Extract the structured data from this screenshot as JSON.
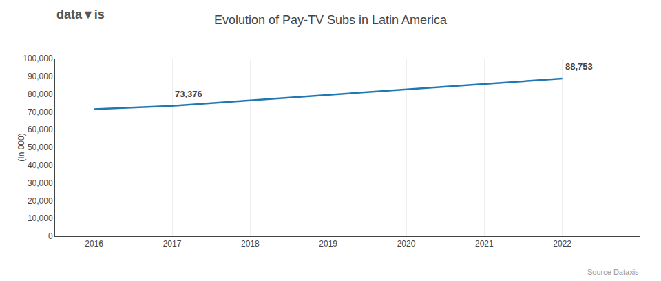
{
  "chart_data": {
    "type": "line",
    "title": "Evolution of Pay-TV Subs in Latin America",
    "ylabel": "(In 000)",
    "x": [
      2016,
      2017,
      2018,
      2019,
      2020,
      2021,
      2022
    ],
    "values": [
      71500,
      73376,
      76500,
      79500,
      82500,
      85700,
      88753
    ],
    "xlim": [
      2015.5,
      2023.0
    ],
    "xticks": [
      2016,
      2017,
      2018,
      2019,
      2020,
      2021,
      2022
    ],
    "ylim": [
      0,
      100000
    ],
    "yticks": [
      0,
      {
        "value": 10000,
        "label": "10,000"
      },
      {
        "value": 20000,
        "label": "20,000"
      },
      {
        "value": 30000,
        "label": "30,000"
      },
      {
        "value": 40000,
        "label": "40,000"
      },
      {
        "value": 50000,
        "label": "50,000"
      },
      {
        "value": 60000,
        "label": "60,000"
      },
      {
        "value": 70000,
        "label": "70,000"
      },
      {
        "value": 80000,
        "label": "80,000"
      },
      {
        "value": 90000,
        "label": "90,000"
      },
      {
        "value": 100000,
        "label": "100,000"
      }
    ],
    "grid": "x",
    "annotations": [
      {
        "x": 2017,
        "y": 73376,
        "text": "73,376"
      },
      {
        "x": 2022,
        "y": 88753,
        "text": "88,753"
      },
      {
        "text": "data▼is"
      },
      {
        "text": "Source Dataxis"
      }
    ]
  }
}
